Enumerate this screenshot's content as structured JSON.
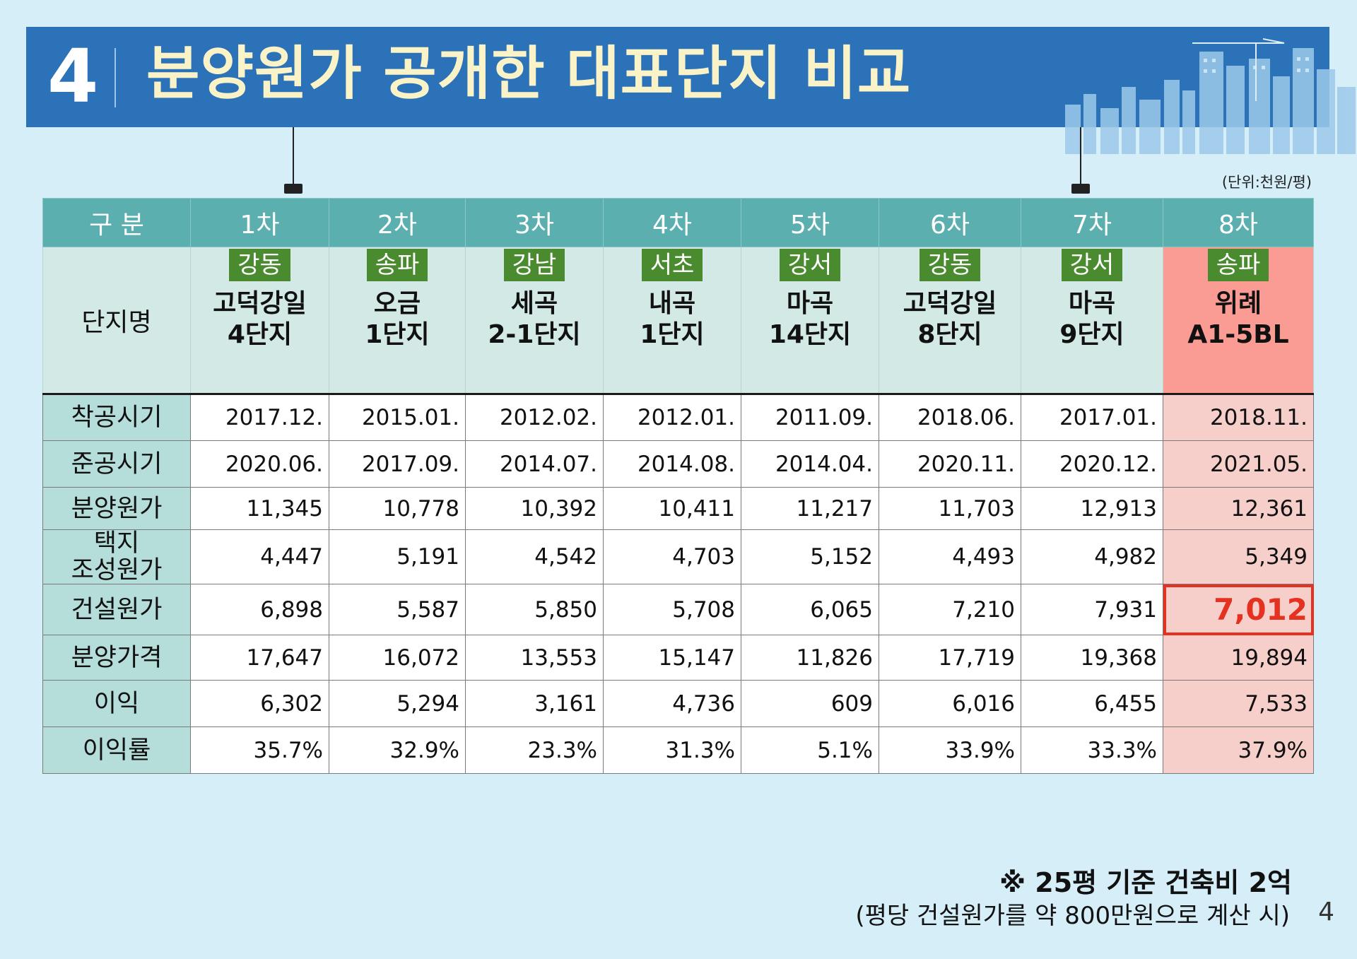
{
  "header": {
    "number": "4",
    "title": "분양원가 공개한 대표단지 비교"
  },
  "unit": "(단위:천원/평)",
  "table": {
    "corner": "구 분",
    "columns": [
      "1차",
      "2차",
      "3차",
      "4차",
      "5차",
      "6차",
      "7차",
      "8차"
    ],
    "name_label": "단지명",
    "districts": [
      "강동",
      "송파",
      "강남",
      "서초",
      "강서",
      "강동",
      "강서",
      "송파"
    ],
    "names": [
      "고덕강일\n4단지",
      "오금\n1단지",
      "세곡\n2-1단지",
      "내곡\n1단지",
      "마곡\n14단지",
      "고덕강일\n8단지",
      "마곡\n9단지",
      "위례\nA1-5BL"
    ],
    "rows": [
      {
        "label": "착공시기",
        "values": [
          "2017.12.",
          "2015.01.",
          "2012.02.",
          "2012.01.",
          "2011.09.",
          "2018.06.",
          "2017.01.",
          "2018.11."
        ]
      },
      {
        "label": "준공시기",
        "values": [
          "2020.06.",
          "2017.09.",
          "2014.07.",
          "2014.08.",
          "2014.04.",
          "2020.11.",
          "2020.12.",
          "2021.05."
        ]
      },
      {
        "label": "분양원가",
        "values": [
          "11,345",
          "10,778",
          "10,392",
          "10,411",
          "11,217",
          "11,703",
          "12,913",
          "12,361"
        ]
      },
      {
        "label": "택지\n조성원가",
        "values": [
          "4,447",
          "5,191",
          "4,542",
          "4,703",
          "5,152",
          "4,493",
          "4,982",
          "5,349"
        ]
      },
      {
        "label": "건설원가",
        "values": [
          "6,898",
          "5,587",
          "5,850",
          "5,708",
          "6,065",
          "7,210",
          "7,931",
          "7,012"
        ]
      },
      {
        "label": "분양가격",
        "values": [
          "17,647",
          "16,072",
          "13,553",
          "15,147",
          "11,826",
          "17,719",
          "19,368",
          "19,894"
        ]
      },
      {
        "label": "이익",
        "values": [
          "6,302",
          "5,294",
          "3,161",
          "4,736",
          "609",
          "6,016",
          "6,455",
          "7,533"
        ]
      },
      {
        "label": "이익률",
        "values": [
          "35.7%",
          "32.9%",
          "23.3%",
          "31.3%",
          "5.1%",
          "33.9%",
          "33.3%",
          "37.9%"
        ]
      }
    ]
  },
  "notes": {
    "line1": "※ 25평 기준 건축비 2억",
    "line2": "(평당 건설원가를 약 800만원으로 계산 시)"
  },
  "page_number": "4",
  "colors": {
    "banner": "#2b72b8",
    "title_text": "#fbf3c8",
    "header_row": "#5cafaf",
    "district_badge": "#4a8b2f",
    "highlight_column": "#f6cfca",
    "highlight_name": "#fa9b94",
    "emphasis": "#e53120"
  }
}
